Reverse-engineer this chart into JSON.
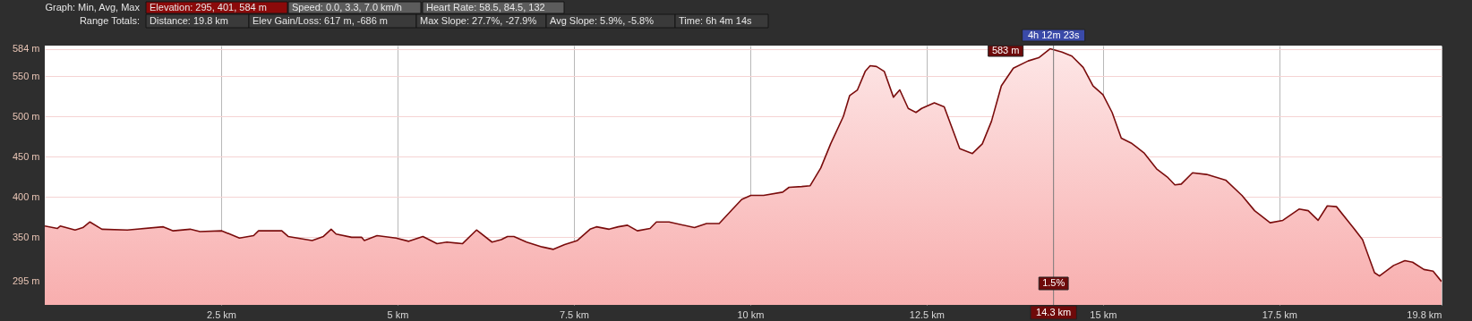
{
  "chart_data": {
    "type": "area",
    "xlim": [
      0,
      19.8
    ],
    "ylim": [
      266,
      588
    ],
    "xticks": [
      {
        "value": 2.5,
        "label": "2.5 km"
      },
      {
        "value": 5,
        "label": "5 km"
      },
      {
        "value": 7.5,
        "label": "7.5 km"
      },
      {
        "value": 10,
        "label": "10 km"
      },
      {
        "value": 12.5,
        "label": "12.5 km"
      },
      {
        "value": 15,
        "label": "15 km"
      },
      {
        "value": 17.5,
        "label": "17.5 km"
      },
      {
        "value": 19.8,
        "label": "19.8 km"
      }
    ],
    "yticks": [
      {
        "value": 295,
        "label": "295 m"
      },
      {
        "value": 350,
        "label": "350 m"
      },
      {
        "value": 400,
        "label": "400 m"
      },
      {
        "value": 450,
        "label": "450 m"
      },
      {
        "value": 500,
        "label": "500 m"
      },
      {
        "value": 550,
        "label": "550 m"
      },
      {
        "value": 584,
        "label": "584 m"
      }
    ],
    "grid": true,
    "series": [
      {
        "color": "#7a0c0c",
        "x": [
          0,
          0.18,
          0.22,
          0.43,
          0.54,
          0.64,
          0.81,
          1.17,
          1.68,
          1.82,
          2.06,
          2.2,
          2.51,
          2.76,
          2.96,
          3.03,
          3.36,
          3.45,
          3.79,
          3.95,
          4.06,
          4.13,
          4.35,
          4.49,
          4.53,
          4.71,
          4.98,
          5.16,
          5.36,
          5.56,
          5.7,
          5.92,
          6.12,
          6.34,
          6.47,
          6.56,
          6.65,
          6.83,
          7.05,
          7.21,
          7.37,
          7.55,
          7.73,
          7.82,
          8.0,
          8.13,
          8.26,
          8.4,
          8.58,
          8.67,
          8.85,
          9.21,
          9.38,
          9.56,
          9.74,
          9.88,
          10.01,
          10.19,
          10.46,
          10.55,
          10.73,
          10.85,
          11.0,
          11.14,
          11.32,
          11.41,
          11.52,
          11.63,
          11.7,
          11.79,
          11.9,
          12.03,
          12.12,
          12.24,
          12.35,
          12.43,
          12.61,
          12.75,
          12.97,
          13.15,
          13.29,
          13.42,
          13.56,
          13.73,
          13.94,
          14.09,
          14.25,
          14.42,
          14.56,
          14.72,
          14.86,
          15.0,
          15.13,
          15.26,
          15.4,
          15.58,
          15.76,
          15.91,
          16.02,
          16.11,
          16.27,
          16.47,
          16.74,
          16.97,
          17.15,
          17.37,
          17.55,
          17.78,
          17.91,
          18.05,
          18.18,
          18.31,
          18.54,
          18.68,
          18.85,
          18.92,
          19.12,
          19.28,
          19.39,
          19.55,
          19.68,
          19.8
        ],
        "values": [
          364,
          361,
          364,
          359,
          362,
          369,
          360,
          359,
          363,
          358,
          360,
          357,
          358,
          349,
          352,
          358,
          358,
          351,
          346,
          351,
          360,
          354,
          350,
          350,
          346,
          352,
          349,
          345,
          351,
          342,
          344,
          342,
          359,
          344,
          347,
          351,
          351,
          344,
          338,
          335,
          341,
          346,
          360,
          363,
          360,
          363,
          365,
          358,
          361,
          369,
          369,
          362,
          367,
          367,
          384,
          397,
          402,
          402,
          406,
          412,
          413,
          414,
          436,
          466,
          500,
          526,
          533,
          556,
          563,
          562,
          556,
          524,
          533,
          510,
          505,
          510,
          517,
          512,
          460,
          454,
          466,
          494,
          538,
          560,
          569,
          573,
          584,
          580,
          575,
          561,
          538,
          527,
          505,
          473,
          467,
          455,
          435,
          425,
          415,
          416,
          430,
          428,
          421,
          402,
          383,
          368,
          371,
          385,
          383,
          371,
          389,
          388,
          363,
          347,
          306,
          302,
          315,
          321,
          319,
          310,
          308,
          295
        ]
      }
    ],
    "ref_lines": [
      {
        "axis": "x",
        "value": 14.3,
        "label": "14.3 km"
      }
    ],
    "annotations": [
      "Graph: Min, Avg, Max",
      "Elevation: 295, 401, 584 m",
      "Speed: 0.0, 3.3, 7.0 km/h",
      "Heart Rate: 58.5, 84.5, 132",
      "Range Totals:",
      "Distance: 19.8 km",
      "Elev Gain/Loss: 617 m, -686 m",
      "Max Slope: 27.7%, -27.9%",
      "Avg Slope: 5.9%, -5.8%",
      "Time: 6h 4m 14s",
      "4h 12m 23s",
      "583 m",
      "1.5%"
    ]
  }
}
